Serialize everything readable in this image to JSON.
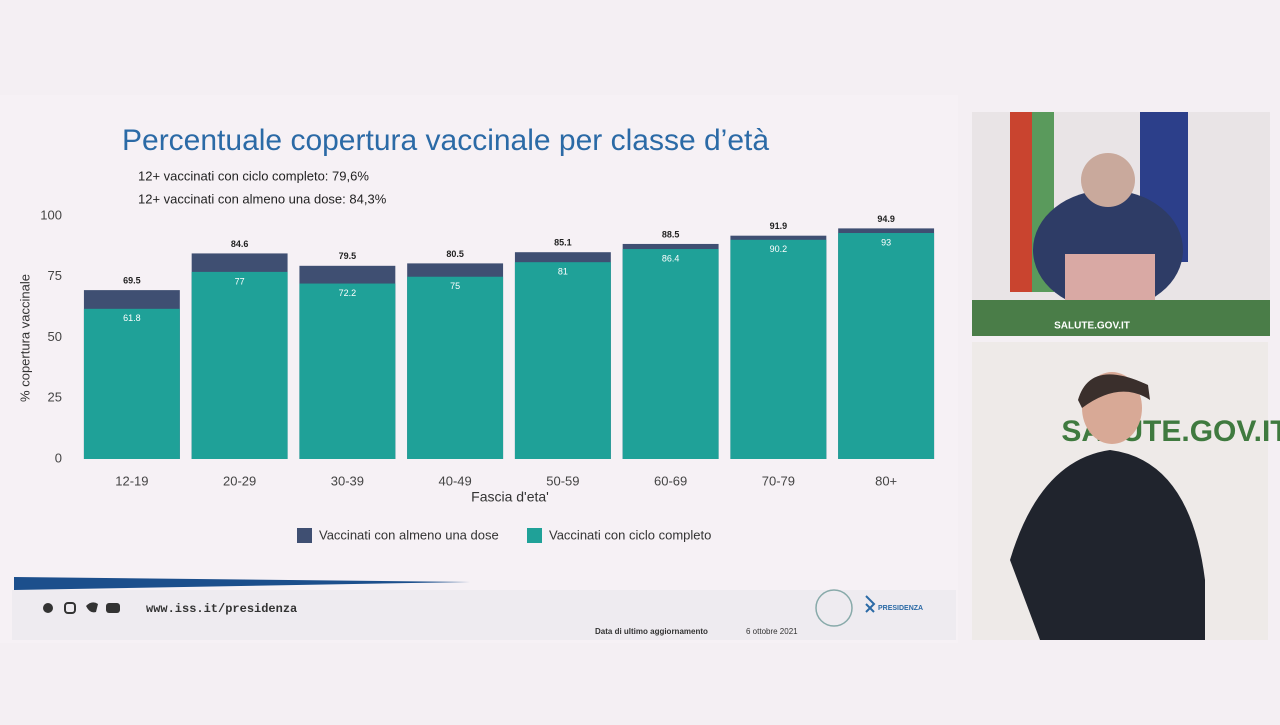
{
  "chart_data": {
    "type": "bar",
    "overlap": true,
    "title": "Percentuale copertura vaccinale per classe d’età",
    "subtitle": [
      "12+ vaccinati con ciclo completo: 79,6%",
      "12+ vaccinati con almeno una dose: 84,3%"
    ],
    "x_label": "Fascia d'eta'",
    "y_label": "% copertura vaccinale",
    "categories": [
      "12-19",
      "20-29",
      "30-39",
      "40-49",
      "50-59",
      "60-69",
      "70-79",
      "80+"
    ],
    "series": [
      {
        "name": "Vaccinati con almeno una dose",
        "color": "#3f4f72",
        "values": [
          69.5,
          84.6,
          79.5,
          80.5,
          85.1,
          88.5,
          91.9,
          94.9
        ]
      },
      {
        "name": "Vaccinati con ciclo completo",
        "color": "#1fa198",
        "values": [
          61.8,
          77,
          72.2,
          75,
          81,
          86.4,
          90.2,
          93
        ]
      }
    ],
    "ylim": [
      0,
      100
    ],
    "yticks": [
      0,
      25,
      50,
      75,
      100
    ],
    "grid": false,
    "legend": "bottom"
  },
  "footer": {
    "url": "www.iss.it/presidenza",
    "update_label": "Data di ultimo aggiornamento",
    "update_date": "6 ottobre 2021",
    "logo": "PRESIDENZA"
  },
  "broadcast": {
    "top_banner": "SALUTE.GOV.IT",
    "backdrop": "SALUTE.GOV.IT"
  }
}
